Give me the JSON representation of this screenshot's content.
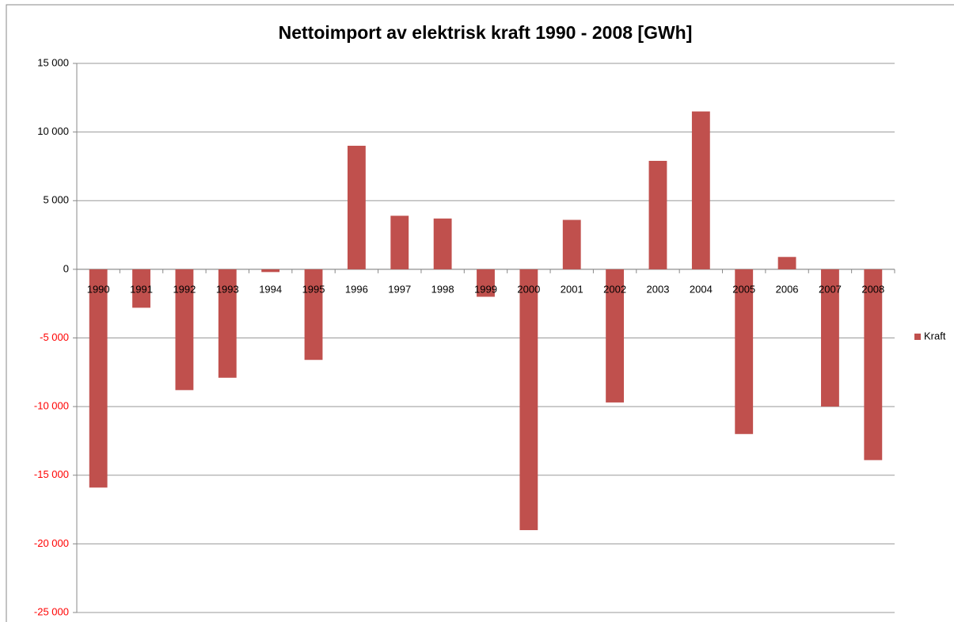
{
  "chart_data": {
    "type": "bar",
    "title": "Nettoimport av elektrisk kraft 1990 - 2008 [GWh]",
    "categories": [
      "1990",
      "1991",
      "1992",
      "1993",
      "1994",
      "1995",
      "1996",
      "1997",
      "1998",
      "1999",
      "2000",
      "2001",
      "2002",
      "2003",
      "2004",
      "2005",
      "2006",
      "2007",
      "2008"
    ],
    "series": [
      {
        "name": "Kraft",
        "color": "#c0504d",
        "values": [
          -15900,
          -2800,
          -8800,
          -7900,
          -200,
          -6600,
          9000,
          3900,
          3700,
          -2000,
          -19000,
          3600,
          -9700,
          7900,
          11500,
          -12000,
          900,
          -10000,
          -13900
        ]
      }
    ],
    "ylim": [
      -25000,
      15000
    ],
    "yticks": [
      {
        "value": -25000,
        "label": "-25 000"
      },
      {
        "value": -20000,
        "label": "-20 000"
      },
      {
        "value": -15000,
        "label": "-15 000"
      },
      {
        "value": -10000,
        "label": "-10 000"
      },
      {
        "value": -5000,
        "label": "-5 000"
      },
      0,
      {
        "value": 5000,
        "label": "5 000"
      },
      {
        "value": 10000,
        "label": "10 000"
      },
      {
        "value": 15000,
        "label": "15 000"
      }
    ],
    "grid": true,
    "legend": "right",
    "negative_tick_color": "#ff0000"
  }
}
